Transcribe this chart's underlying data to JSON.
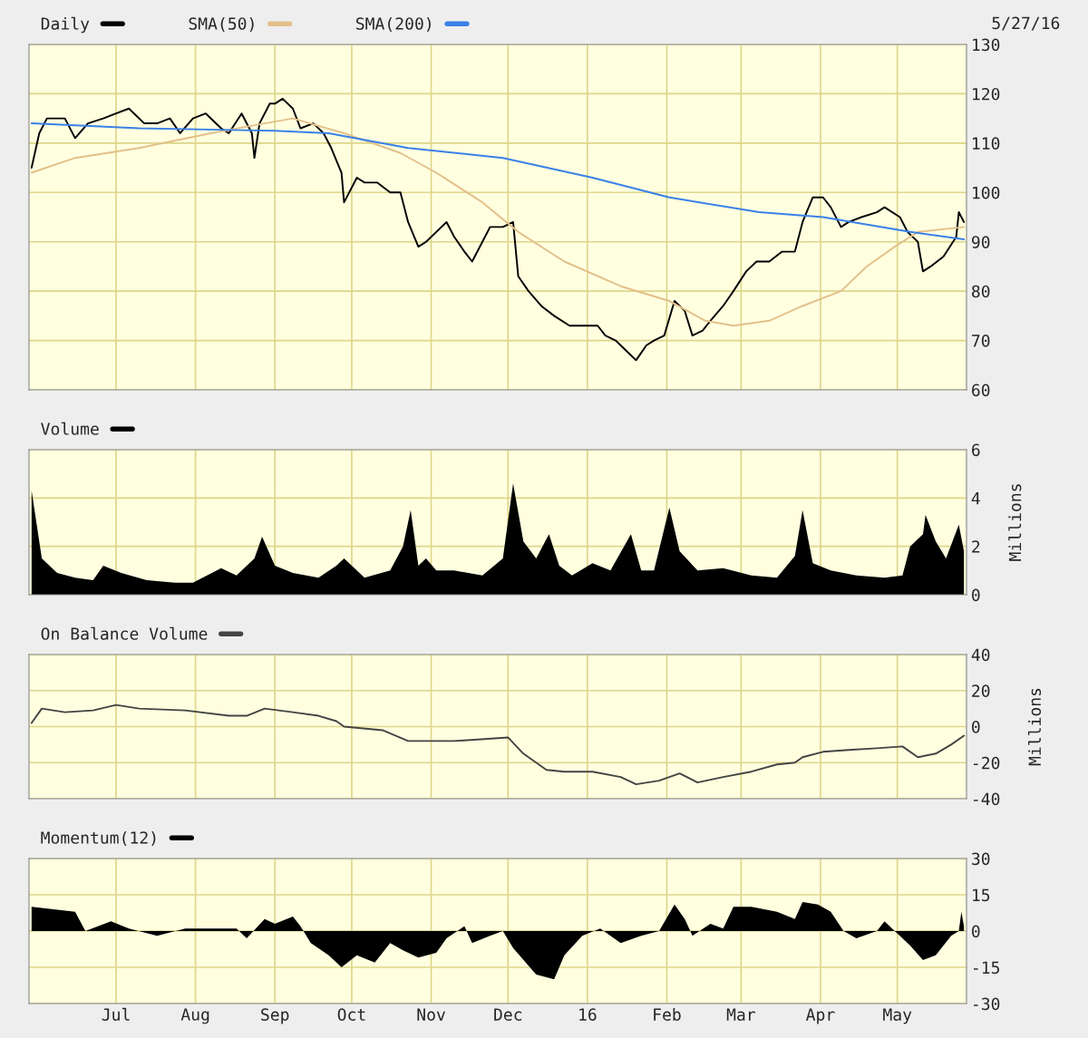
{
  "chart_data": [
    {
      "type": "line",
      "legend": "top left",
      "grid": true,
      "tick_labels": "y",
      "annotations": [
        "5/27/16"
      ],
      "xlim": [
        "2015-05-28",
        "2016-05-28"
      ],
      "ylim": [
        60,
        130
      ],
      "yticks": [
        60,
        70,
        80,
        90,
        100,
        110,
        120,
        130
      ],
      "xticks": [
        {
          "value": "2015-07-01",
          "label": null
        },
        {
          "value": "2015-08-01",
          "label": null
        },
        {
          "value": "2015-09-01",
          "label": null
        },
        {
          "value": "2015-10-01",
          "label": null
        },
        {
          "value": "2015-11-01",
          "label": null
        },
        {
          "value": "2015-12-01",
          "label": null
        },
        {
          "value": "2016-01-01",
          "label": null
        },
        {
          "value": "2016-02-01",
          "label": null
        },
        {
          "value": "2016-03-01",
          "label": null
        },
        {
          "value": "2016-04-01",
          "label": null
        },
        {
          "value": "2016-05-01",
          "label": null
        }
      ],
      "series": [
        {
          "name": "Daily",
          "color": "#000000",
          "x": [
            "2015-05-29",
            "2015-06-01",
            "2015-06-04",
            "2015-06-11",
            "2015-06-15",
            "2015-06-20",
            "2015-06-26",
            "2015-07-01",
            "2015-07-06",
            "2015-07-12",
            "2015-07-17",
            "2015-07-22",
            "2015-07-26",
            "2015-07-31",
            "2015-08-05",
            "2015-08-11",
            "2015-08-14",
            "2015-08-19",
            "2015-08-23",
            "2015-08-24",
            "2015-08-26",
            "2015-08-30",
            "2015-09-01",
            "2015-09-04",
            "2015-09-08",
            "2015-09-11",
            "2015-09-16",
            "2015-09-20",
            "2015-09-23",
            "2015-09-27",
            "2015-09-28",
            "2015-10-03",
            "2015-10-06",
            "2015-10-11",
            "2015-10-16",
            "2015-10-20",
            "2015-10-23",
            "2015-10-27",
            "2015-10-30",
            "2015-11-03",
            "2015-11-07",
            "2015-11-10",
            "2015-11-14",
            "2015-11-17",
            "2015-11-21",
            "2015-11-24",
            "2015-11-29",
            "2015-12-03",
            "2015-12-05",
            "2015-12-09",
            "2015-12-14",
            "2015-12-19",
            "2015-12-25",
            "2015-12-30",
            "2016-01-05",
            "2016-01-08",
            "2016-01-12",
            "2016-01-16",
            "2016-01-20",
            "2016-01-24",
            "2016-01-27",
            "2016-01-31",
            "2016-02-04",
            "2016-02-08",
            "2016-02-11",
            "2016-02-15",
            "2016-02-18",
            "2016-02-23",
            "2016-02-27",
            "2016-03-03",
            "2016-03-07",
            "2016-03-12",
            "2016-03-17",
            "2016-03-22",
            "2016-03-25",
            "2016-03-29",
            "2016-04-02",
            "2016-04-05",
            "2016-04-09",
            "2016-04-12",
            "2016-04-17",
            "2016-04-23",
            "2016-04-26",
            "2016-05-02",
            "2016-05-05",
            "2016-05-09",
            "2016-05-11",
            "2016-05-14",
            "2016-05-19",
            "2016-05-24",
            "2016-05-25",
            "2016-05-27"
          ],
          "values": [
            105,
            112,
            115,
            115,
            111,
            114,
            115,
            116,
            117,
            114,
            114,
            115,
            112,
            115,
            116,
            113,
            112,
            116,
            112,
            107,
            114,
            118,
            118,
            119,
            117,
            113,
            114,
            112,
            109,
            104,
            98,
            103,
            102,
            102,
            100,
            100,
            94,
            89,
            90,
            92,
            94,
            91,
            88,
            86,
            90,
            93,
            93,
            94,
            83,
            80,
            77,
            75,
            73,
            73,
            73,
            71,
            70,
            68,
            66,
            69,
            70,
            71,
            78,
            76,
            71,
            72,
            74,
            77,
            80,
            84,
            86,
            86,
            88,
            88,
            94,
            99,
            99,
            97,
            93,
            94,
            95,
            96,
            97,
            95,
            92,
            90,
            84,
            85,
            87,
            91,
            96,
            94
          ]
        },
        {
          "name": "SMA(50)",
          "color": "#e3c08a",
          "x": [
            "2015-05-29",
            "2015-06-15",
            "2015-07-10",
            "2015-08-07",
            "2015-08-28",
            "2015-09-08",
            "2015-09-28",
            "2015-10-20",
            "2015-11-03",
            "2015-11-21",
            "2015-12-05",
            "2015-12-23",
            "2016-01-14",
            "2016-02-02",
            "2016-02-16",
            "2016-02-27",
            "2016-03-12",
            "2016-03-25",
            "2016-04-09",
            "2016-04-19",
            "2016-04-30",
            "2016-05-09",
            "2016-05-27"
          ],
          "values": [
            104,
            107,
            109,
            112,
            114,
            115,
            112,
            108,
            104,
            98,
            92,
            86,
            81,
            78,
            74,
            73,
            74,
            77,
            80,
            85,
            89,
            92,
            93
          ]
        },
        {
          "name": "SMA(200)",
          "color": "#3a80e8",
          "x": [
            "2015-05-29",
            "2015-07-10",
            "2015-09-01",
            "2015-09-22",
            "2015-10-23",
            "2015-11-29",
            "2016-01-03",
            "2016-02-02",
            "2016-03-08",
            "2016-04-02",
            "2016-05-06",
            "2016-05-27"
          ],
          "values": [
            114,
            113,
            112.5,
            112,
            109,
            107,
            103,
            99,
            96,
            95,
            92,
            90.5
          ]
        }
      ]
    },
    {
      "type": "area",
      "legend": "top left",
      "grid": true,
      "tick_labels": "y",
      "ylabel": "Millions",
      "xlim": [
        "2015-05-28",
        "2016-05-28"
      ],
      "ylim": [
        0,
        6
      ],
      "yticks": [
        0,
        2,
        4,
        6
      ],
      "xticks": [
        {
          "value": "2015-07-01",
          "label": null
        },
        {
          "value": "2015-08-01",
          "label": null
        },
        {
          "value": "2015-09-01",
          "label": null
        },
        {
          "value": "2015-10-01",
          "label": null
        },
        {
          "value": "2015-11-01",
          "label": null
        },
        {
          "value": "2015-12-01",
          "label": null
        },
        {
          "value": "2016-01-01",
          "label": null
        },
        {
          "value": "2016-02-01",
          "label": null
        },
        {
          "value": "2016-03-01",
          "label": null
        },
        {
          "value": "2016-04-01",
          "label": null
        },
        {
          "value": "2016-05-01",
          "label": null
        }
      ],
      "series": [
        {
          "name": "Volume",
          "color": "#000000",
          "x": [
            "2015-05-29",
            "2015-06-02",
            "2015-06-08",
            "2015-06-15",
            "2015-06-22",
            "2015-06-26",
            "2015-07-03",
            "2015-07-13",
            "2015-07-24",
            "2015-07-31",
            "2015-08-11",
            "2015-08-17",
            "2015-08-24",
            "2015-08-27",
            "2015-09-01",
            "2015-09-08",
            "2015-09-18",
            "2015-09-25",
            "2015-09-28",
            "2015-10-06",
            "2015-10-16",
            "2015-10-21",
            "2015-10-24",
            "2015-10-27",
            "2015-10-30",
            "2015-11-03",
            "2015-11-10",
            "2015-11-21",
            "2015-11-29",
            "2015-12-03",
            "2015-12-07",
            "2015-12-12",
            "2015-12-17",
            "2015-12-21",
            "2015-12-26",
            "2016-01-03",
            "2016-01-10",
            "2016-01-18",
            "2016-01-22",
            "2016-01-27",
            "2016-02-02",
            "2016-02-06",
            "2016-02-13",
            "2016-02-23",
            "2016-03-05",
            "2016-03-15",
            "2016-03-22",
            "2016-03-25",
            "2016-03-29",
            "2016-04-05",
            "2016-04-15",
            "2016-04-26",
            "2016-05-03",
            "2016-05-06",
            "2016-05-11",
            "2016-05-12",
            "2016-05-16",
            "2016-05-20",
            "2016-05-25",
            "2016-05-27"
          ],
          "values": [
            4.3,
            1.5,
            0.9,
            0.7,
            0.6,
            1.2,
            0.9,
            0.6,
            0.5,
            0.5,
            1.1,
            0.8,
            1.5,
            2.4,
            1.2,
            0.9,
            0.7,
            1.2,
            1.5,
            0.7,
            1.0,
            2.0,
            3.5,
            1.2,
            1.5,
            1.0,
            1.0,
            0.8,
            1.5,
            4.6,
            2.2,
            1.5,
            2.5,
            1.2,
            0.8,
            1.3,
            1.0,
            2.5,
            1.0,
            1.0,
            3.6,
            1.8,
            1.0,
            1.1,
            0.8,
            0.7,
            1.6,
            3.5,
            1.3,
            1.0,
            0.8,
            0.7,
            0.8,
            2.0,
            2.5,
            3.3,
            2.2,
            1.5,
            2.9,
            1.8
          ]
        }
      ]
    },
    {
      "type": "line",
      "legend": "top left",
      "grid": true,
      "tick_labels": "y",
      "ylabel": "Millions",
      "xlim": [
        "2015-05-28",
        "2016-05-28"
      ],
      "ylim": [
        -40,
        40
      ],
      "yticks": [
        -40,
        -20,
        0,
        20,
        40
      ],
      "xticks": [
        {
          "value": "2015-07-01",
          "label": null
        },
        {
          "value": "2015-08-01",
          "label": null
        },
        {
          "value": "2015-09-01",
          "label": null
        },
        {
          "value": "2015-10-01",
          "label": null
        },
        {
          "value": "2015-11-01",
          "label": null
        },
        {
          "value": "2015-12-01",
          "label": null
        },
        {
          "value": "2016-01-01",
          "label": null
        },
        {
          "value": "2016-02-01",
          "label": null
        },
        {
          "value": "2016-03-01",
          "label": null
        },
        {
          "value": "2016-04-01",
          "label": null
        },
        {
          "value": "2016-05-01",
          "label": null
        }
      ],
      "series": [
        {
          "name": "On Balance Volume",
          "color": "#444444",
          "x": [
            "2015-05-29",
            "2015-06-02",
            "2015-06-11",
            "2015-06-22",
            "2015-07-01",
            "2015-07-10",
            "2015-07-28",
            "2015-08-14",
            "2015-08-21",
            "2015-08-28",
            "2015-09-08",
            "2015-09-18",
            "2015-09-25",
            "2015-09-28",
            "2015-10-13",
            "2015-10-23",
            "2015-11-10",
            "2015-12-01",
            "2015-12-07",
            "2015-12-16",
            "2015-12-23",
            "2016-01-03",
            "2016-01-14",
            "2016-01-20",
            "2016-01-29",
            "2016-02-06",
            "2016-02-13",
            "2016-02-23",
            "2016-03-05",
            "2016-03-15",
            "2016-03-22",
            "2016-03-25",
            "2016-04-02",
            "2016-04-12",
            "2016-04-23",
            "2016-05-03",
            "2016-05-09",
            "2016-05-16",
            "2016-05-22",
            "2016-05-27"
          ],
          "values": [
            2,
            10,
            8,
            9,
            12,
            10,
            9,
            6,
            6,
            10,
            8,
            6,
            3,
            0,
            -2,
            -8,
            -8,
            -6,
            -15,
            -24,
            -25,
            -25,
            -28,
            -32,
            -30,
            -26,
            -31,
            -28,
            -25,
            -21,
            -20,
            -17,
            -14,
            -13,
            -12,
            -11,
            -17,
            -15,
            -10,
            -5
          ]
        }
      ]
    },
    {
      "type": "area",
      "legend": "top left",
      "grid": true,
      "xlim": [
        "2015-05-28",
        "2016-05-28"
      ],
      "ylim": [
        -30,
        30
      ],
      "yticks": [
        -30,
        -15,
        0,
        15,
        30
      ],
      "xticks": [
        {
          "value": "2015-07-01",
          "label": "Jul"
        },
        {
          "value": "2015-08-01",
          "label": "Aug"
        },
        {
          "value": "2015-09-01",
          "label": "Sep"
        },
        {
          "value": "2015-10-01",
          "label": "Oct"
        },
        {
          "value": "2015-11-01",
          "label": "Nov"
        },
        {
          "value": "2015-12-01",
          "label": "Dec"
        },
        {
          "value": "2016-01-01",
          "label": "16"
        },
        {
          "value": "2016-02-01",
          "label": "Feb"
        },
        {
          "value": "2016-03-01",
          "label": "Mar"
        },
        {
          "value": "2016-04-01",
          "label": "Apr"
        },
        {
          "value": "2016-05-01",
          "label": "May"
        }
      ],
      "series": [
        {
          "name": "Momentum(12)",
          "color": "#000000",
          "x": [
            "2015-05-29",
            "2015-06-15",
            "2015-06-19",
            "2015-06-29",
            "2015-07-06",
            "2015-07-17",
            "2015-07-28",
            "2015-08-07",
            "2015-08-17",
            "2015-08-21",
            "2015-08-28",
            "2015-09-01",
            "2015-09-08",
            "2015-09-11",
            "2015-09-15",
            "2015-09-22",
            "2015-09-27",
            "2015-10-03",
            "2015-10-10",
            "2015-10-16",
            "2015-10-21",
            "2015-10-27",
            "2015-11-03",
            "2015-11-07",
            "2015-11-14",
            "2015-11-17",
            "2015-11-24",
            "2015-11-29",
            "2015-12-03",
            "2015-12-12",
            "2015-12-19",
            "2015-12-23",
            "2015-12-30",
            "2016-01-06",
            "2016-01-14",
            "2016-01-22",
            "2016-01-29",
            "2016-02-04",
            "2016-02-08",
            "2016-02-11",
            "2016-02-18",
            "2016-02-23",
            "2016-02-27",
            "2016-03-05",
            "2016-03-15",
            "2016-03-22",
            "2016-03-25",
            "2016-03-31",
            "2016-04-05",
            "2016-04-10",
            "2016-04-15",
            "2016-04-23",
            "2016-04-26",
            "2016-05-01",
            "2016-05-06",
            "2016-05-11",
            "2016-05-16",
            "2016-05-22",
            "2016-05-25",
            "2016-05-26",
            "2016-05-27"
          ],
          "values": [
            10,
            8,
            0,
            4,
            1,
            -2,
            1,
            1,
            1,
            -3,
            5,
            3,
            6,
            2,
            -5,
            -10,
            -15,
            -10,
            -13,
            -5,
            -8,
            -11,
            -9,
            -3,
            2,
            -5,
            -2,
            0,
            -7,
            -18,
            -20,
            -10,
            -2,
            1,
            -5,
            -2,
            0,
            11,
            5,
            -2,
            3,
            1,
            10,
            10,
            8,
            5,
            12,
            11,
            8,
            0,
            -3,
            0,
            4,
            -1,
            -6,
            -12,
            -10,
            -2,
            0,
            8,
            2
          ]
        }
      ]
    }
  ]
}
